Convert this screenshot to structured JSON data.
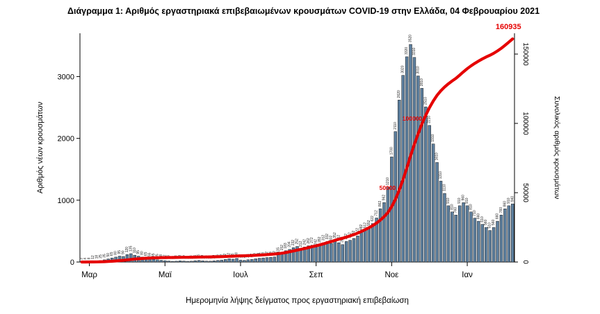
{
  "title": "Διάγραμμα 1: Αριθμός εργαστηριακά επιβεβαιωμένων κρουσμάτων COVID-19 στην Ελλάδα, 04 Φεβρουαρίου 2021",
  "chart_data": {
    "type": "bar+line",
    "title": "Διάγραμμα 1: Αριθμός εργαστηριακά επιβεβαιωμένων κρουσμάτων COVID-19 στην Ελλάδα, 04 Φεβρουαρίου 2021",
    "xlabel": "Ημερομηνία λήψης δείγματος προς εργαστηριακή επιβεβαίωση",
    "ylabel_left": "Αριθμός νέων κρουσμάτων",
    "ylabel_right": "Συνολικός αριθμός κρουσμάτων",
    "grid": false,
    "legend": "none",
    "x_ticks": [
      {
        "label": "Μαρ",
        "index": 2
      },
      {
        "label": "Μαϊ",
        "index": 22
      },
      {
        "label": "Ιουλ",
        "index": 42
      },
      {
        "label": "Σεπ",
        "index": 62
      },
      {
        "label": "Νοε",
        "index": 82
      },
      {
        "label": "Ιαν",
        "index": 102
      }
    ],
    "left_axis": {
      "ticks": [
        0,
        1000,
        2000,
        3000
      ],
      "max": 3700
    },
    "right_axis": {
      "ticks": [
        0,
        50000,
        100000,
        150000
      ],
      "max": 165000
    },
    "bars": {
      "name": "Ημερήσια εργαστηριακά επιβεβαιωμένα κρούσματα",
      "color": "#5d7f9e",
      "edge_color": "#1a1a1a",
      "values": [
        3,
        4,
        8,
        12,
        18,
        25,
        35,
        50,
        65,
        80,
        95,
        90,
        120,
        135,
        110,
        95,
        80,
        65,
        55,
        45,
        35,
        28,
        22,
        16,
        11,
        13,
        19,
        15,
        11,
        13,
        21,
        26,
        19,
        14,
        13,
        19,
        26,
        32,
        42,
        52,
        46,
        58,
        32,
        27,
        36,
        42,
        52,
        61,
        66,
        72,
        76,
        82,
        115,
        152,
        183,
        204,
        232,
        252,
        212,
        242,
        262,
        272,
        242,
        282,
        312,
        332,
        302,
        352,
        312,
        282,
        332,
        352,
        382,
        422,
        482,
        512,
        552,
        622,
        712,
        862,
        962,
        1210,
        1700,
        2110,
        2620,
        3020,
        3320,
        3520,
        3310,
        3010,
        2810,
        2510,
        2210,
        1910,
        1610,
        1310,
        1110,
        910,
        810,
        760,
        910,
        960,
        910,
        810,
        710,
        660,
        610,
        560,
        510,
        560,
        660,
        760,
        860,
        910,
        940
      ]
    },
    "line": {
      "name": "Συνολικός (αθροιστικός) αριθμός κρουσμάτων",
      "color": "#e50000",
      "final_value": 160935
    },
    "annotations": [
      {
        "value": 50000,
        "label": "50000"
      },
      {
        "value": 100000,
        "label": "100000"
      },
      {
        "value": 160935,
        "label": "160935"
      }
    ]
  }
}
